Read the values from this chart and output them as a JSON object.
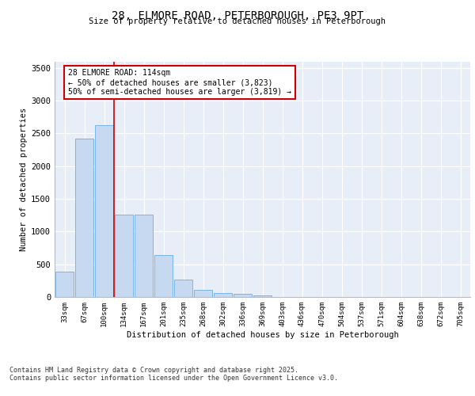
{
  "title_line1": "28, ELMORE ROAD, PETERBOROUGH, PE3 9PT",
  "title_line2": "Size of property relative to detached houses in Peterborough",
  "xlabel": "Distribution of detached houses by size in Peterborough",
  "ylabel": "Number of detached properties",
  "categories": [
    "33sqm",
    "67sqm",
    "100sqm",
    "134sqm",
    "167sqm",
    "201sqm",
    "235sqm",
    "268sqm",
    "302sqm",
    "336sqm",
    "369sqm",
    "403sqm",
    "436sqm",
    "470sqm",
    "504sqm",
    "537sqm",
    "571sqm",
    "604sqm",
    "638sqm",
    "672sqm",
    "705sqm"
  ],
  "values": [
    390,
    2420,
    2620,
    1260,
    1260,
    640,
    265,
    110,
    55,
    50,
    25,
    5,
    0,
    0,
    0,
    0,
    0,
    0,
    0,
    0,
    0
  ],
  "bar_color": "#c6d9f0",
  "bar_edge_color": "#7cb4e8",
  "vline_x": 2.5,
  "vline_color": "#cc0000",
  "annotation_text": "28 ELMORE ROAD: 114sqm\n← 50% of detached houses are smaller (3,823)\n50% of semi-detached houses are larger (3,819) →",
  "annotation_box_color": "#cc0000",
  "ylim": [
    0,
    3600
  ],
  "yticks": [
    0,
    500,
    1000,
    1500,
    2000,
    2500,
    3000,
    3500
  ],
  "background_color": "#e8eef8",
  "grid_color": "#ffffff",
  "footer_line1": "Contains HM Land Registry data © Crown copyright and database right 2025.",
  "footer_line2": "Contains public sector information licensed under the Open Government Licence v3.0."
}
